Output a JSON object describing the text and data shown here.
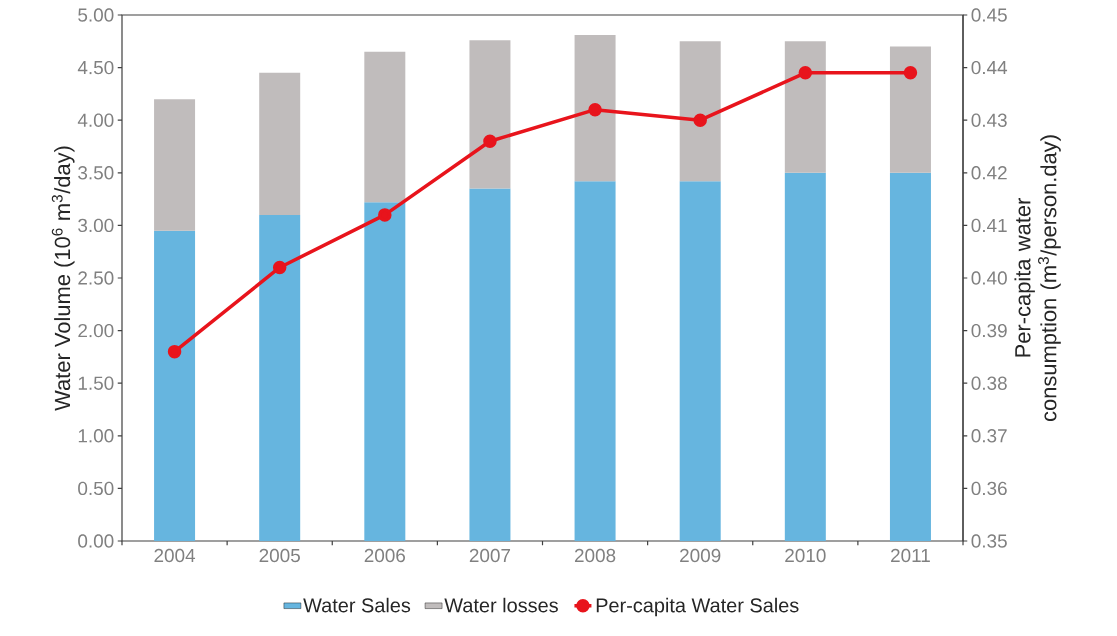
{
  "chart_data": {
    "type": "bar",
    "stacked": true,
    "categories": [
      "2004",
      "2005",
      "2006",
      "2007",
      "2008",
      "2009",
      "2010",
      "2011"
    ],
    "ylabel": "Water Volume (10$^{6}$ m$^{3}$/day)",
    "y2label": "Per-capita water consumption (m$^{3}$/person.day)",
    "series": [
      {
        "name": "Water Sales",
        "color": "#66b5df",
        "values": [
          2.95,
          3.1,
          3.22,
          3.35,
          3.42,
          3.42,
          3.5,
          3.5
        ]
      },
      {
        "name": "Water losses",
        "color": "#c0bcbc",
        "values": [
          1.25,
          1.35,
          1.43,
          1.41,
          1.39,
          1.33,
          1.25,
          1.2
        ]
      },
      {
        "name": "Per-capita Water Sales",
        "type": "line",
        "axis": "y2",
        "marker": "circle",
        "color": "#e8141c",
        "values": [
          0.386,
          0.402,
          0.412,
          0.426,
          0.432,
          0.43,
          0.439,
          0.439
        ]
      }
    ],
    "ylim": [
      0,
      5
    ],
    "yticks": [
      {
        "value": 0,
        "label": "0.00"
      },
      {
        "value": 0.5,
        "label": "0.50"
      },
      {
        "value": 1,
        "label": "1.00"
      },
      {
        "value": 1.5,
        "label": "1.50"
      },
      {
        "value": 2,
        "label": "2.00"
      },
      {
        "value": 2.5,
        "label": "2.50"
      },
      {
        "value": 3,
        "label": "3.00"
      },
      {
        "value": 3.5,
        "label": "3.50"
      },
      {
        "value": 4,
        "label": "4.00"
      },
      {
        "value": 4.5,
        "label": "4.50"
      },
      {
        "value": 5,
        "label": "5.00"
      }
    ],
    "y2lim": [
      0.35,
      0.45
    ],
    "y2ticks": [
      {
        "value": 0.35,
        "label": "0.35"
      },
      {
        "value": 0.36,
        "label": "0.36"
      },
      {
        "value": 0.37,
        "label": "0.37"
      },
      {
        "value": 0.38,
        "label": "0.38"
      },
      {
        "value": 0.39,
        "label": "0.39"
      },
      {
        "value": 0.4,
        "label": "0.40"
      },
      {
        "value": 0.41,
        "label": "0.41"
      },
      {
        "value": 0.42,
        "label": "0.42"
      },
      {
        "value": 0.43,
        "label": "0.43"
      },
      {
        "value": 0.44,
        "label": "0.44"
      },
      {
        "value": 0.45,
        "label": "0.45"
      }
    ],
    "grid": false,
    "legend": "bottom"
  }
}
